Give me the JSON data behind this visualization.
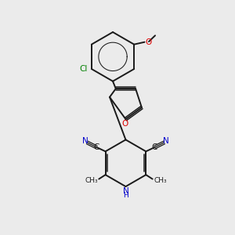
{
  "bg_color": "#ebebeb",
  "bond_color": "#1a1a1a",
  "n_color": "#0000cc",
  "o_color": "#dd0000",
  "cl_color": "#008000",
  "figsize": [
    3.0,
    3.0
  ],
  "dpi": 100,
  "xlim": [
    0,
    10
  ],
  "ylim": [
    0,
    10
  ]
}
